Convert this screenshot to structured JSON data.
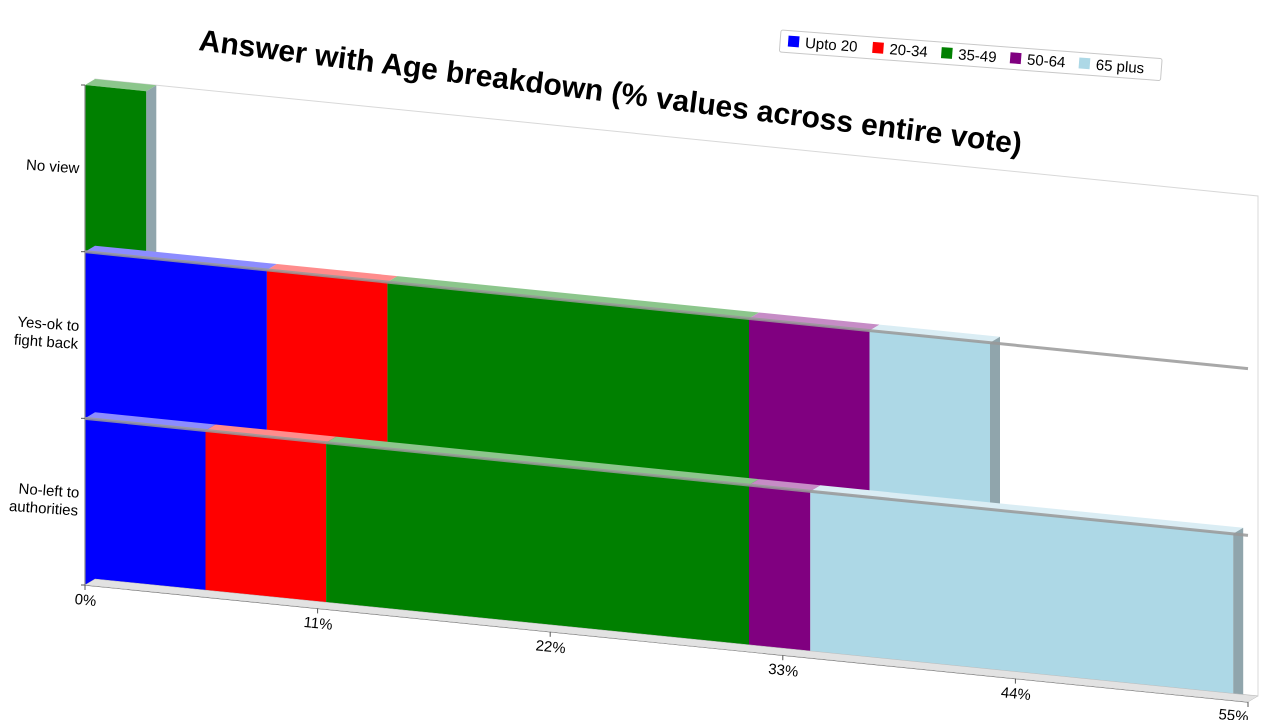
{
  "chart_data": {
    "type": "bar",
    "orientation": "horizontal",
    "stacked": true,
    "title": "Answer with Age breakdown (% values across entire vote)",
    "xlabel": "",
    "ylabel": "",
    "xlim": [
      0,
      55
    ],
    "x_ticks": [
      "0%",
      "11%",
      "22%",
      "33%",
      "44%",
      "55%"
    ],
    "categories": [
      "No view",
      "Yes-ok to fight back",
      "No-left to authorities"
    ],
    "category_lines": [
      [
        "No view"
      ],
      [
        "Yes-ok to",
        "fight back"
      ],
      [
        "No-left to",
        "authorities"
      ]
    ],
    "series": [
      {
        "name": "Upto 20",
        "color": "#0000ff",
        "values": [
          0,
          8.6,
          5.7
        ]
      },
      {
        "name": "20-34",
        "color": "#ff0000",
        "values": [
          0,
          5.7,
          5.7
        ]
      },
      {
        "name": "35-49",
        "color": "#008000",
        "values": [
          2.9,
          17.1,
          20.0
        ]
      },
      {
        "name": "50-64",
        "color": "#800080",
        "values": [
          0,
          5.7,
          2.9
        ]
      },
      {
        "name": "65 plus",
        "color": "#add8e6",
        "values": [
          0,
          5.7,
          20.0
        ]
      }
    ],
    "legend_position": "top-right",
    "grid": false
  }
}
